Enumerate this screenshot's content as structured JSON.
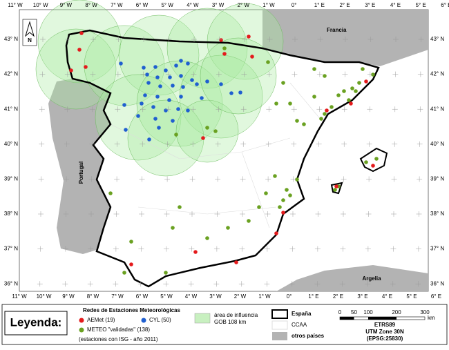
{
  "map": {
    "lon_labels": [
      "11° W",
      "10° W",
      "9° W",
      "8° W",
      "7° W",
      "6° W",
      "5° W",
      "4° W",
      "3° W",
      "2° W",
      "1° W",
      "0°",
      "1° E",
      "2° E",
      "3° E",
      "4° E",
      "5° E",
      "6° E"
    ],
    "lat_labels": [
      "43° N",
      "42° N",
      "41° N",
      "40° N",
      "39° N",
      "38° N",
      "37° N",
      "36° N"
    ],
    "countries": {
      "france": "Francia",
      "portugal": "Portugal",
      "algeria": "Argelia"
    },
    "north": "N"
  },
  "legend": {
    "title": "Leyenda:",
    "networks_title": "Redes de Estaciones Meteorológicas",
    "aemet": "AEMet (19)",
    "cyl": "CYL (50)",
    "meteo": "METEO \"validadas\" (138)",
    "note": "(estaciones con ISG - año 2011)",
    "influence": [
      "área de influencia",
      "GOB 108 km"
    ],
    "spain": "España",
    "ccaa": "CCAA",
    "others": "otros países",
    "scale_ticks": [
      "0",
      "50",
      "100",
      "200",
      "300"
    ],
    "scale_unit": "km",
    "crs": [
      "ETRS89",
      "UTM Zone 30N",
      "(EPSG:25830)"
    ]
  }
}
